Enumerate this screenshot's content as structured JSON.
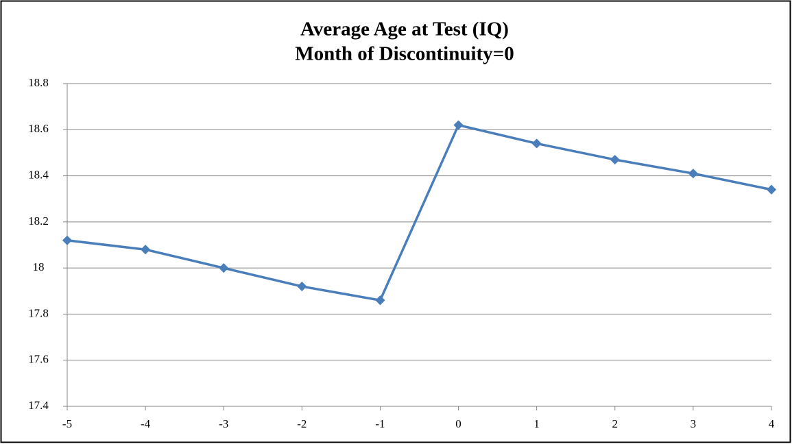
{
  "chart_data": {
    "type": "line",
    "title": "Average Age at Test (IQ)",
    "subtitle": "Month of Discontinuity=0",
    "x": [
      -5,
      -4,
      -3,
      -2,
      -1,
      0,
      1,
      2,
      3,
      4
    ],
    "series": [
      {
        "color": "#4a7ebb",
        "values": [
          18.12,
          18.08,
          18.0,
          17.92,
          17.86,
          18.62,
          18.54,
          18.47,
          18.41,
          18.34
        ]
      }
    ],
    "xlim": [
      -5,
      4
    ],
    "xticks": [
      -5,
      -4,
      -3,
      -2,
      -1,
      0,
      1,
      2,
      3,
      4
    ],
    "ylim": [
      17.4,
      18.8
    ],
    "yticks": [
      17.4,
      17.6,
      17.8,
      18,
      18.2,
      18.4,
      18.6,
      18.8
    ],
    "grid": true
  }
}
